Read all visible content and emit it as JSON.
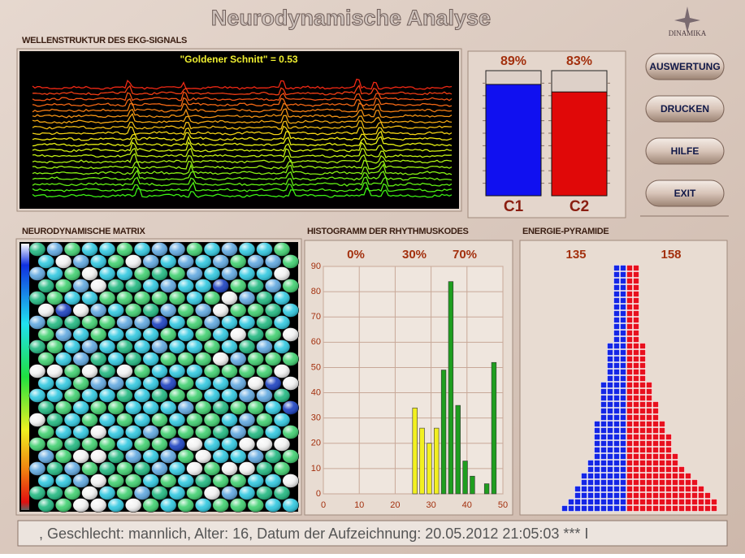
{
  "header": {
    "title": "Neurodynamische Analyse",
    "logo": "DINAMIKA"
  },
  "ekg": {
    "title": "WELLENSTRUKTUR DES EKG-SIGNALS",
    "label": "\"Goldener Schnitt\" = 0.53"
  },
  "buttons": [
    "AUSWERTUNG",
    "DRUCKEN",
    "HILFE",
    "EXIT"
  ],
  "matrix": {
    "title": "NEURODYNAMISCHE MATRIX"
  },
  "histogram_title": "HISTOGRAMM DER RHYTHMUSKODES",
  "pyramid_title": "ENERGIE-PYRAMIDE",
  "status": ", Geschlecht: mannlich, Alter: 16, Datum der Aufzeichnung: 20.05.2012 21:05:03  *** I",
  "chart_data": [
    {
      "type": "bar",
      "categories": [
        "C1",
        "C2"
      ],
      "values": [
        89,
        83
      ],
      "value_labels": [
        "89%",
        "83%"
      ],
      "colors": [
        "#1010f0",
        "#e00808"
      ],
      "ylim": [
        0,
        100
      ]
    },
    {
      "type": "histogram",
      "annotations": [
        "0%",
        "30%",
        "70%"
      ],
      "series": [
        {
          "color": "#f2f020",
          "x": [
            25.5,
            27.5,
            29.5,
            31.5
          ],
          "values": [
            34,
            26,
            20,
            26
          ]
        },
        {
          "color": "#1f9e1f",
          "x": [
            33.5,
            35.5,
            37.5,
            39.5,
            41.5,
            45.5,
            47.5
          ],
          "values": [
            49,
            84,
            35,
            13,
            7,
            4,
            52
          ]
        }
      ],
      "xlim": [
        0,
        50
      ],
      "xticks": [
        0,
        10,
        20,
        30,
        40,
        50
      ],
      "ylim": [
        0,
        90
      ],
      "yticks": [
        0,
        10,
        20,
        30,
        40,
        50,
        60,
        70,
        80,
        90
      ],
      "grid": true
    },
    {
      "type": "pyramid",
      "totals": [
        135,
        158
      ],
      "series": [
        {
          "color": "#1426e6",
          "values": [
            2,
            2,
            2,
            2,
            2,
            2,
            2,
            2,
            2,
            2,
            2,
            2,
            3,
            3,
            3,
            3,
            3,
            3,
            4,
            4,
            4,
            4,
            4,
            4,
            5,
            5,
            5,
            5,
            5,
            5,
            6,
            6,
            7,
            7,
            8,
            8,
            9,
            10
          ]
        },
        {
          "color": "#e8101e",
          "values": [
            2,
            2,
            2,
            2,
            2,
            2,
            2,
            2,
            2,
            2,
            2,
            2,
            3,
            3,
            3,
            3,
            3,
            3,
            4,
            4,
            4,
            5,
            5,
            5,
            6,
            6,
            7,
            7,
            7,
            8,
            8,
            9,
            10,
            11,
            12,
            13,
            14,
            14
          ]
        }
      ]
    }
  ]
}
